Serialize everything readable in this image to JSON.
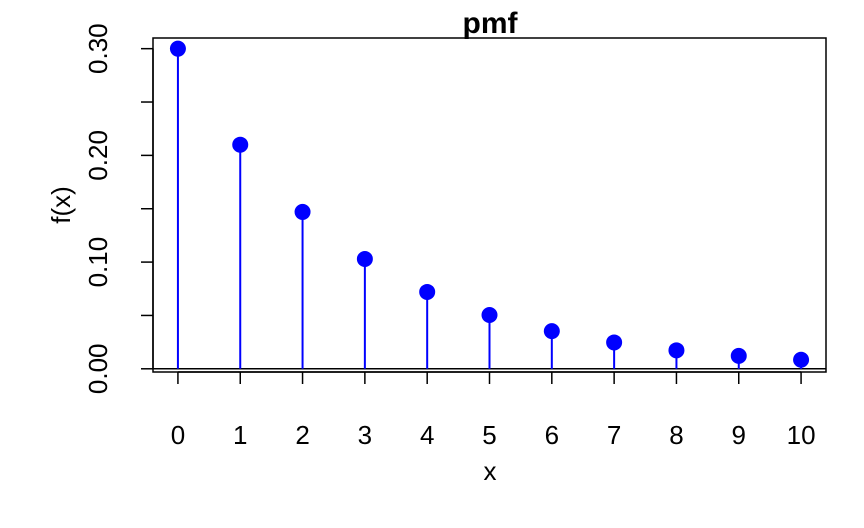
{
  "chart_data": {
    "type": "scatter",
    "style": "lollipop",
    "title": "pmf",
    "xlabel": "x",
    "ylabel": "f(x)",
    "x": [
      0,
      1,
      2,
      3,
      4,
      5,
      6,
      7,
      8,
      9,
      10
    ],
    "values": [
      0.3,
      0.21,
      0.147,
      0.1029,
      0.072,
      0.0504,
      0.0353,
      0.0247,
      0.0173,
      0.0121,
      0.0085
    ],
    "xlim": [
      -0.4,
      10.4
    ],
    "ylim": [
      -0.003,
      0.31
    ],
    "y_ticks": [
      0.0,
      0.05,
      0.1,
      0.15,
      0.2,
      0.25,
      0.3
    ],
    "y_tick_labels": [
      "0.00",
      "",
      "0.10",
      "",
      "0.20",
      "",
      "0.30"
    ],
    "x_ticks": [
      0,
      1,
      2,
      3,
      4,
      5,
      6,
      7,
      8,
      9,
      10
    ],
    "x_tick_labels": [
      "0",
      "1",
      "2",
      "3",
      "4",
      "5",
      "6",
      "7",
      "8",
      "9",
      "10"
    ],
    "baseline": 0,
    "grid": false,
    "point_color": "#0000ff",
    "stem_color": "#0000ff",
    "baseline_color": "#000000"
  }
}
